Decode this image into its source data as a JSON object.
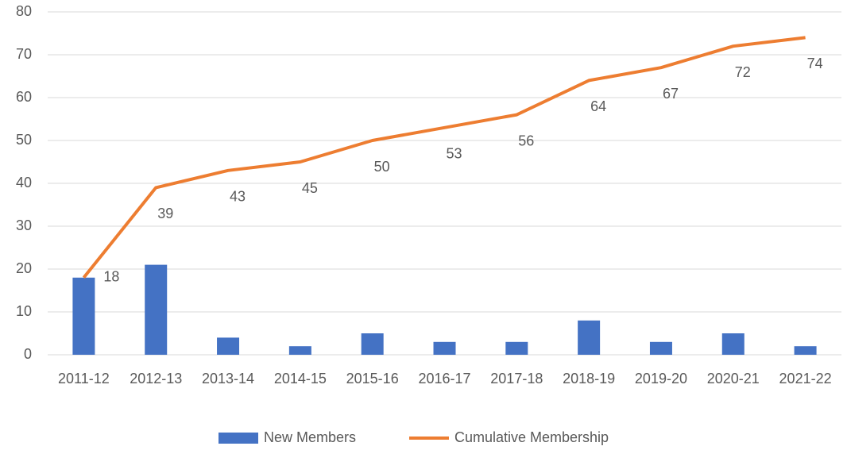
{
  "chart_data": {
    "type": "combo",
    "categories": [
      "2011-12",
      "2012-13",
      "2013-14",
      "2014-15",
      "2015-16",
      "2016-17",
      "2017-18",
      "2018-19",
      "2019-20",
      "2020-21",
      "2021-22"
    ],
    "series": [
      {
        "name": "New Members",
        "type": "bar",
        "color": "#4472c4",
        "values": [
          18,
          21,
          4,
          2,
          5,
          3,
          3,
          8,
          3,
          5,
          2
        ]
      },
      {
        "name": "Cumulative Membership",
        "type": "line",
        "color": "#ed7d31",
        "data_labels": true,
        "values": [
          18,
          39,
          43,
          45,
          50,
          53,
          56,
          64,
          67,
          72,
          74
        ]
      }
    ],
    "ylim": [
      0,
      80
    ],
    "yticks": [
      0,
      10,
      20,
      30,
      40,
      50,
      60,
      70,
      80
    ],
    "grid": true,
    "legend": "bottom"
  }
}
